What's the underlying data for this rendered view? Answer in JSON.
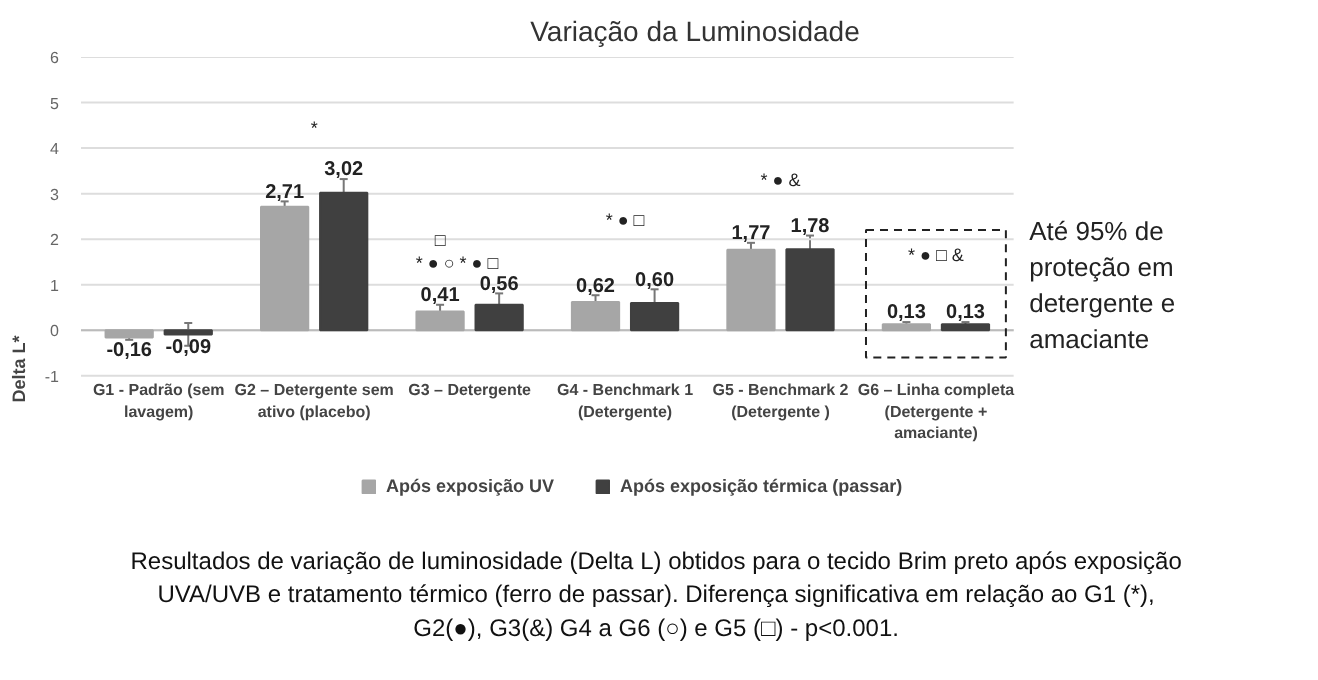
{
  "chart_data": {
    "type": "bar",
    "title": "Variação da Luminosidade",
    "ylabel": "Delta L*",
    "categories": [
      "G1 - Padrão (sem lavagem)",
      "G2 – Detergente sem ativo (placebo)",
      "G3 – Detergente",
      "G4 - Benchmark 1 (Detergente)",
      "G5 - Benchmark 2 (Detergente )",
      "G6 – Linha completa (Detergente + amaciante)"
    ],
    "series": [
      {
        "name": "Após exposição UV",
        "color": "#a6a6a6",
        "values": [
          -0.16,
          2.71,
          0.41,
          0.62,
          1.77,
          0.13
        ],
        "errors": [
          0.05,
          0.12,
          0.15,
          0.15,
          0.15,
          0.05
        ],
        "value_labels": [
          "-0,16",
          "2,71",
          "0,41",
          "0,62",
          "1,77",
          "0,13"
        ]
      },
      {
        "name": "Após exposição térmica (passar)",
        "color": "#404040",
        "values": [
          -0.09,
          3.02,
          0.56,
          0.6,
          1.78,
          0.13
        ],
        "errors": [
          0.25,
          0.3,
          0.25,
          0.3,
          0.3,
          0.05
        ],
        "value_labels": [
          "-0,09",
          "3,02",
          "0,56",
          "0,60",
          "1,78",
          "0,13"
        ]
      }
    ],
    "ylim": [
      -1,
      6
    ],
    "yticks": [
      -1,
      0,
      1,
      2,
      3,
      4,
      5,
      6
    ],
    "grid": "y",
    "legend": "bottom",
    "annotations": [
      "*",
      "* ● ○      * ● □",
      "□",
      "* ● □",
      "* ● &",
      "* ● □ &",
      "Até 95% de proteção em detergente e amaciante",
      "Resultados de variação de luminosidade (Delta L) obtidos para o tecido Brim preto após exposição UVA/UVB e tratamento térmico (ferro de passar). Diferença significativa em relação ao G1 (*), G2(●), G3(&) G4 a G6 (○) e G5 (□) - p<0.001."
    ]
  }
}
